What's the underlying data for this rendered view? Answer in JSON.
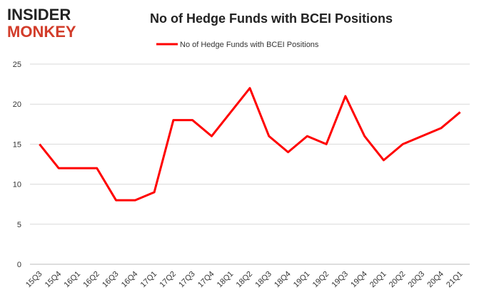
{
  "logo": {
    "line1": "INSIDER",
    "line2": "MONKEY"
  },
  "chart_data": {
    "type": "line",
    "title": "No of Hedge Funds with BCEI Positions",
    "categories": [
      "15Q3",
      "15Q4",
      "16Q1",
      "16Q2",
      "16Q3",
      "16Q4",
      "17Q1",
      "17Q2",
      "17Q3",
      "17Q4",
      "18Q1",
      "18Q2",
      "18Q3",
      "18Q4",
      "19Q1",
      "19Q2",
      "19Q3",
      "19Q4",
      "20Q1",
      "20Q2",
      "20Q3",
      "20Q4",
      "21Q1"
    ],
    "series": [
      {
        "name": "No of Hedge Funds with BCEI Positions",
        "color": "#ff0000",
        "values": [
          15,
          12,
          12,
          12,
          8,
          8,
          9,
          18,
          18,
          16,
          19,
          22,
          16,
          14,
          16,
          15,
          21,
          16,
          13,
          15,
          16,
          17,
          19
        ]
      }
    ],
    "ylim": [
      0,
      25
    ],
    "yticks": [
      0,
      5,
      10,
      15,
      20,
      25
    ],
    "grid": true,
    "legend": "top"
  }
}
